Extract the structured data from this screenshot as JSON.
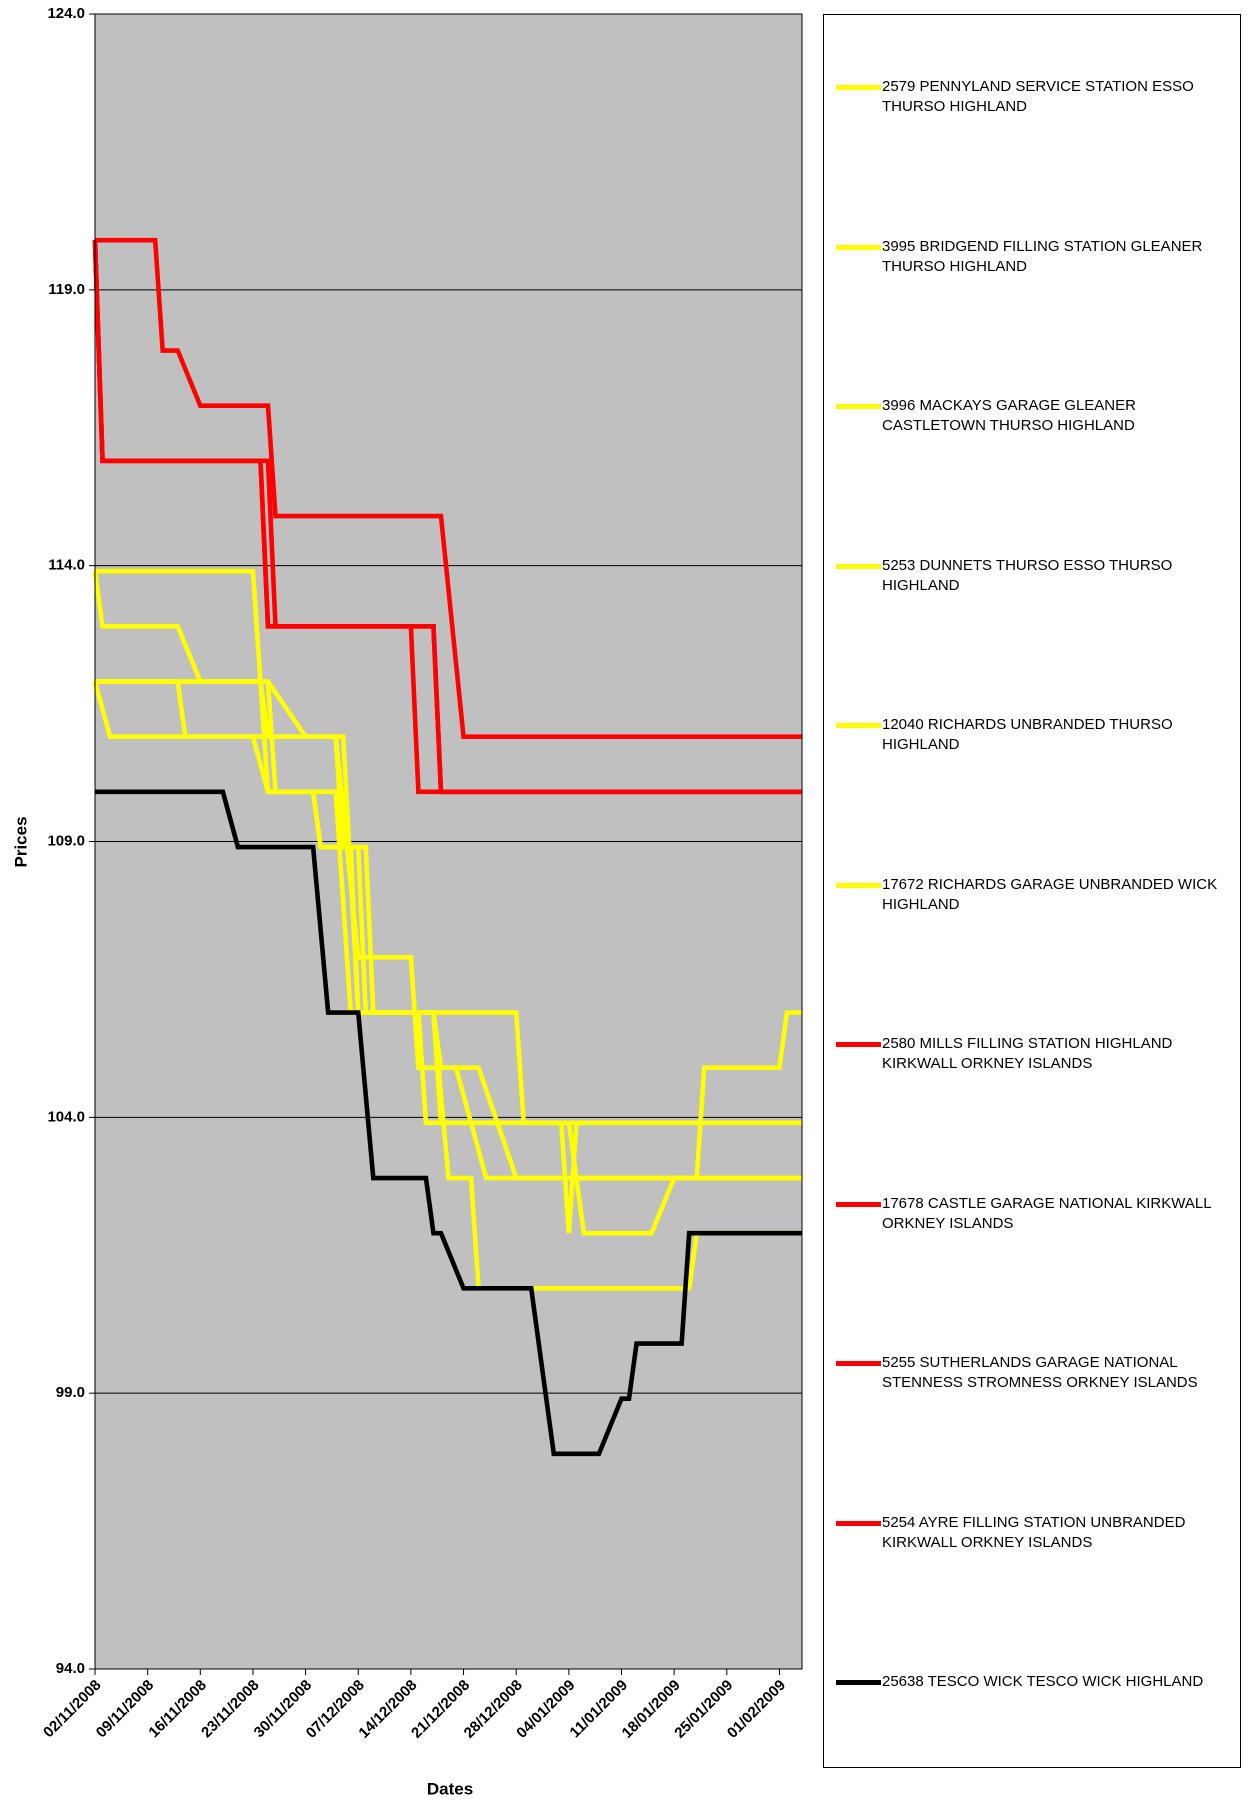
{
  "chart_data": {
    "type": "line",
    "x_label": "Dates",
    "y_label": "Prices",
    "xlim": [
      "02/11/2008",
      "04/02/2009"
    ],
    "ylim": [
      94,
      124
    ],
    "yticks": [
      {
        "value": 94,
        "label": "94.0"
      },
      {
        "value": 99,
        "label": "99.0"
      },
      {
        "value": 104,
        "label": "104.0"
      },
      {
        "value": 109,
        "label": "109.0"
      },
      {
        "value": 114,
        "label": "114.0"
      },
      {
        "value": 119,
        "label": "119.0"
      },
      {
        "value": 124,
        "label": "124.0"
      }
    ],
    "xticks": [
      "02/11/2008",
      "09/11/2008",
      "16/11/2008",
      "23/11/2008",
      "30/11/2008",
      "07/12/2008",
      "14/12/2008",
      "21/12/2008",
      "28/12/2008",
      "04/01/2009",
      "11/01/2009",
      "18/01/2009",
      "25/01/2009",
      "01/02/2009"
    ],
    "grid": true,
    "legend": "right",
    "series": [
      {
        "name": "2579 PENNYLAND SERVICE STATION ESSO THURSO HIGHLAND",
        "color": "#ffff00",
        "x": [
          "02/11/2008",
          "03/11/2008",
          "13/11/2008",
          "16/11/2008",
          "25/11/2008",
          "30/11/2008",
          "04/12/2008",
          "07/12/2008",
          "14/12/2008",
          "15/12/2008",
          "23/12/2008",
          "28/12/2008",
          "04/02/2009"
        ],
        "values": [
          113.9,
          112.9,
          112.9,
          111.9,
          111.9,
          110.9,
          110.9,
          106.9,
          106.9,
          104.9,
          104.9,
          102.9,
          102.9
        ]
      },
      {
        "name": "3995 BRIDGEND FILLING STATION GLEANER THURSO HIGHLAND",
        "color": "#ffff00",
        "x": [
          "02/11/2008",
          "23/11/2008",
          "25/11/2008",
          "01/12/2008",
          "02/12/2008",
          "08/12/2008",
          "09/12/2008",
          "17/12/2008",
          "18/12/2008",
          "04/01/2009",
          "06/01/2009",
          "15/01/2009",
          "18/01/2009",
          "04/02/2009"
        ],
        "values": [
          113.9,
          113.9,
          109.9,
          109.9,
          108.9,
          108.9,
          105.9,
          105.9,
          103.9,
          103.9,
          101.9,
          101.9,
          102.9,
          102.9
        ]
      },
      {
        "name": "3996 MACKAYS GARAGE GLEANER CASTLETOWN THURSO HIGHLAND",
        "color": "#ffff00",
        "x": [
          "02/11/2008",
          "04/11/2008",
          "04/12/2008",
          "05/12/2008",
          "07/12/2008",
          "08/12/2008",
          "17/12/2008",
          "19/12/2008",
          "22/12/2008",
          "23/12/2008",
          "20/01/2009",
          "21/01/2009",
          "04/02/2009"
        ],
        "values": [
          111.9,
          110.9,
          110.9,
          108.9,
          108.9,
          105.9,
          105.9,
          102.9,
          102.9,
          100.9,
          100.9,
          101.9,
          101.9
        ]
      },
      {
        "name": "5253 DUNNETS THURSO ESSO THURSO HIGHLAND",
        "color": "#ffff00",
        "x": [
          "02/11/2008",
          "13/11/2008",
          "14/11/2008",
          "23/11/2008",
          "25/11/2008",
          "04/12/2008",
          "06/12/2008",
          "28/12/2008",
          "29/12/2008",
          "04/02/2009"
        ],
        "values": [
          111.9,
          111.9,
          110.9,
          110.9,
          109.9,
          109.9,
          105.9,
          105.9,
          103.9,
          103.9
        ]
      },
      {
        "name": "12040 RICHARDS UNBRANDED THURSO HIGHLAND",
        "color": "#ffff00",
        "x": [
          "02/11/2008",
          "25/11/2008",
          "26/11/2008",
          "01/12/2008",
          "02/12/2008",
          "06/12/2008",
          "07/12/2008",
          "15/12/2008",
          "16/12/2008",
          "03/01/2009",
          "04/01/2009",
          "05/01/2009",
          "04/02/2009"
        ],
        "values": [
          111.9,
          111.9,
          109.9,
          109.9,
          108.9,
          108.9,
          105.9,
          105.9,
          103.9,
          103.9,
          101.9,
          103.9,
          103.9
        ]
      },
      {
        "name": "17672 RICHARDS GARAGE UNBRANDED WICK HIGHLAND",
        "color": "#ffff00",
        "x": [
          "02/11/2008",
          "24/11/2008",
          "25/11/2008",
          "05/12/2008",
          "07/12/2008",
          "17/12/2008",
          "18/12/2008",
          "20/12/2008",
          "24/12/2008",
          "21/01/2009",
          "22/01/2009",
          "01/02/2009",
          "02/02/2009",
          "04/02/2009"
        ],
        "values": [
          111.9,
          111.9,
          110.9,
          110.9,
          105.9,
          105.9,
          104.9,
          104.9,
          102.9,
          102.9,
          104.9,
          104.9,
          105.9,
          105.9
        ]
      },
      {
        "name": "2580 MILLS FILLING STATION HIGHLAND KIRKWALL ORKNEY ISLANDS",
        "color": "#ff0000",
        "x": [
          "02/11/2008",
          "10/11/2008",
          "11/11/2008",
          "13/11/2008",
          "16/11/2008",
          "25/11/2008",
          "26/11/2008",
          "18/12/2008",
          "21/12/2008",
          "04/02/2009"
        ],
        "values": [
          119.9,
          119.9,
          117.9,
          117.9,
          116.9,
          116.9,
          114.9,
          114.9,
          110.9,
          110.9
        ]
      },
      {
        "name": "17678 CASTLE GARAGE NATIONAL KIRKWALL ORKNEY ISLANDS",
        "color": "#ff0000",
        "x": [
          "02/11/2008",
          "03/11/2008",
          "24/11/2008",
          "25/11/2008",
          "14/12/2008",
          "15/12/2008",
          "04/02/2009"
        ],
        "values": [
          119.9,
          115.9,
          115.9,
          112.9,
          112.9,
          109.9,
          109.9
        ]
      },
      {
        "name": "5255 SUTHERLANDS GARAGE NATIONAL STENNESS STROMNESS ORKNEY ISLANDS",
        "color": "#ff0000",
        "x": [
          "02/11/2008",
          "03/11/2008",
          "25/11/2008",
          "26/11/2008",
          "17/12/2008",
          "18/12/2008",
          "04/02/2009"
        ],
        "values": [
          119.9,
          115.9,
          115.9,
          112.9,
          112.9,
          109.9,
          109.9
        ]
      },
      {
        "name": "5254 AYRE FILLING STATION UNBRANDED KIRKWALL ORKNEY ISLANDS",
        "color": "#ff0000",
        "x": [
          "02/11/2008",
          "03/11/2008",
          "24/11/2008",
          "25/11/2008",
          "17/12/2008",
          "18/12/2008",
          "04/02/2009"
        ],
        "values": [
          119.9,
          115.9,
          115.9,
          112.9,
          112.9,
          109.9,
          109.9
        ]
      },
      {
        "name": "25638 TESCO WICK TESCO WICK HIGHLAND",
        "color": "#000000",
        "x": [
          "02/11/2008",
          "19/11/2008",
          "21/11/2008",
          "01/12/2008",
          "03/12/2008",
          "07/12/2008",
          "09/12/2008",
          "16/12/2008",
          "17/12/2008",
          "18/12/2008",
          "21/12/2008",
          "30/12/2008",
          "02/01/2009",
          "08/01/2009",
          "11/01/2009",
          "12/01/2009",
          "13/01/2009",
          "19/01/2009",
          "20/01/2009",
          "04/02/2009"
        ],
        "values": [
          109.9,
          109.9,
          108.9,
          108.9,
          105.9,
          105.9,
          102.9,
          102.9,
          101.9,
          101.9,
          100.9,
          100.9,
          97.9,
          97.9,
          98.9,
          98.9,
          99.9,
          99.9,
          101.9,
          101.9
        ]
      }
    ]
  }
}
